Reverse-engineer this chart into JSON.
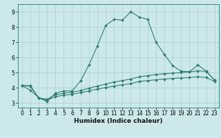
{
  "title": "",
  "xlabel": "Humidex (Indice chaleur)",
  "bg_color": "#cce8ea",
  "grid_color": "#aacdd0",
  "line_color": "#2e7d6e",
  "xlim": [
    -0.5,
    23.5
  ],
  "ylim": [
    2.7,
    9.5
  ],
  "xtick_labels": [
    "0",
    "1",
    "2",
    "3",
    "4",
    "5",
    "6",
    "7",
    "8",
    "9",
    "10",
    "11",
    "12",
    "13",
    "14",
    "15",
    "16",
    "17",
    "18",
    "19",
    "20",
    "21",
    "22",
    "23"
  ],
  "xticks": [
    0,
    1,
    2,
    3,
    4,
    5,
    6,
    7,
    8,
    9,
    10,
    11,
    12,
    13,
    14,
    15,
    16,
    17,
    18,
    19,
    20,
    21,
    22,
    23
  ],
  "yticks": [
    3,
    4,
    5,
    6,
    7,
    8,
    9
  ],
  "series1_x": [
    0,
    1,
    2,
    3,
    4,
    5,
    6,
    7,
    8,
    9,
    10,
    11,
    12,
    13,
    14,
    15,
    16,
    17,
    18,
    19,
    20,
    21,
    22,
    23
  ],
  "series1_y": [
    4.15,
    3.85,
    3.35,
    3.1,
    3.65,
    3.8,
    3.8,
    4.45,
    5.5,
    6.75,
    8.1,
    8.5,
    8.45,
    9.0,
    8.65,
    8.5,
    7.0,
    6.2,
    5.45,
    5.1,
    5.05,
    5.5,
    5.1,
    4.5
  ],
  "series2_x": [
    0,
    1,
    2,
    3,
    4,
    5,
    6,
    7,
    8,
    9,
    10,
    11,
    12,
    13,
    14,
    15,
    16,
    17,
    18,
    19,
    20,
    21,
    22,
    23
  ],
  "series2_y": [
    4.15,
    4.15,
    3.35,
    3.25,
    3.55,
    3.65,
    3.72,
    3.82,
    3.98,
    4.12,
    4.25,
    4.38,
    4.48,
    4.58,
    4.72,
    4.8,
    4.87,
    4.93,
    4.97,
    5.0,
    5.05,
    5.12,
    5.08,
    4.5
  ],
  "series3_x": [
    0,
    1,
    2,
    3,
    4,
    5,
    6,
    7,
    8,
    9,
    10,
    11,
    12,
    13,
    14,
    15,
    16,
    17,
    18,
    19,
    20,
    21,
    22,
    23
  ],
  "series3_y": [
    4.15,
    4.1,
    3.35,
    3.18,
    3.42,
    3.52,
    3.58,
    3.68,
    3.8,
    3.92,
    4.02,
    4.12,
    4.2,
    4.28,
    4.42,
    4.48,
    4.53,
    4.58,
    4.62,
    4.65,
    4.68,
    4.72,
    4.68,
    4.42
  ]
}
